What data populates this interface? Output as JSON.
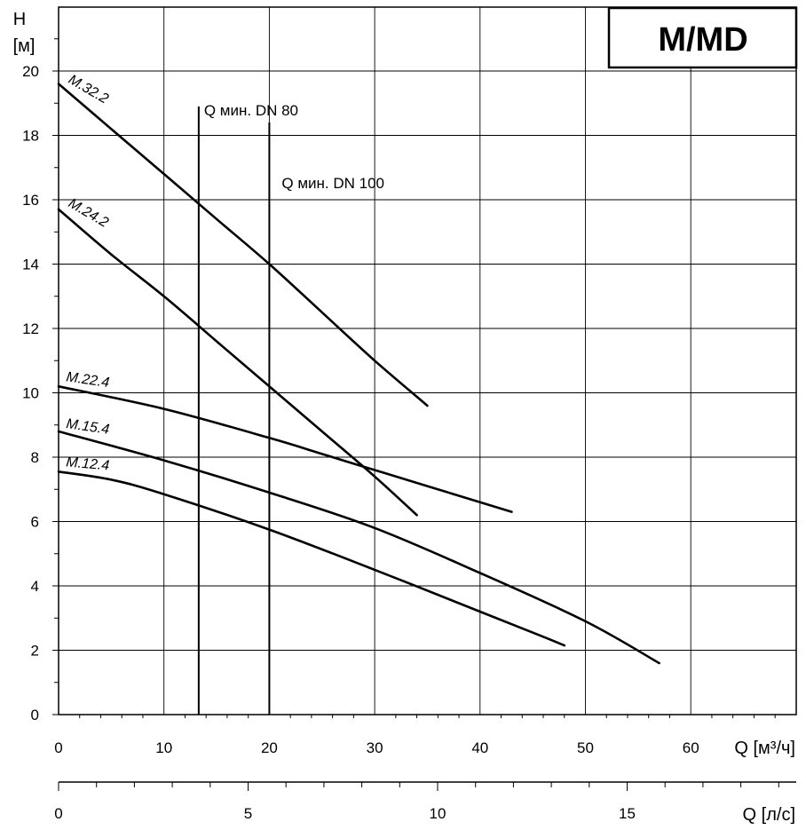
{
  "badge": "M/MD",
  "chart_data": {
    "type": "line",
    "title": "",
    "xlabel": "Q [м³/ч]",
    "ylabel_top": "H",
    "ylabel_unit": "[м]",
    "x2label": "Q [л/с]",
    "xlim": [
      0,
      70
    ],
    "ylim": [
      0,
      22
    ],
    "x_ticks": [
      0,
      10,
      20,
      30,
      40,
      50,
      60
    ],
    "y_ticks": [
      0,
      2,
      4,
      6,
      8,
      10,
      12,
      14,
      16,
      18,
      20
    ],
    "x2_ticks": [
      0,
      5,
      10,
      15
    ],
    "grid": true,
    "series": [
      {
        "name": "M.32.2",
        "x": [
          0,
          5,
          10,
          15,
          20,
          25,
          30,
          35
        ],
        "y": [
          19.6,
          18.2,
          16.8,
          15.4,
          14.0,
          12.5,
          11.0,
          9.6
        ]
      },
      {
        "name": "M.24.2",
        "x": [
          0,
          5,
          10,
          15,
          20,
          25,
          30,
          34
        ],
        "y": [
          15.7,
          14.3,
          13.0,
          11.6,
          10.2,
          8.8,
          7.4,
          6.2
        ]
      },
      {
        "name": "M.22.4",
        "x": [
          0,
          10,
          20,
          25,
          30,
          35,
          40,
          43
        ],
        "y": [
          10.2,
          9.5,
          8.6,
          8.1,
          7.6,
          7.1,
          6.6,
          6.3
        ]
      },
      {
        "name": "M.15.4",
        "x": [
          0,
          10,
          20,
          30,
          40,
          50,
          57
        ],
        "y": [
          8.8,
          7.9,
          6.9,
          5.8,
          4.4,
          2.9,
          1.6
        ]
      },
      {
        "name": "M.12.4",
        "x": [
          0,
          5,
          10,
          20,
          30,
          40,
          45,
          48
        ],
        "y": [
          7.55,
          7.3,
          6.85,
          5.75,
          4.5,
          3.2,
          2.55,
          2.15
        ]
      }
    ],
    "annotations": [
      {
        "text": "Q мин. DN 80",
        "x": 13.3,
        "y_top": 18.9
      },
      {
        "text": "Q мин. DN 100",
        "x": 20.0,
        "y_top": 18.4
      }
    ]
  }
}
